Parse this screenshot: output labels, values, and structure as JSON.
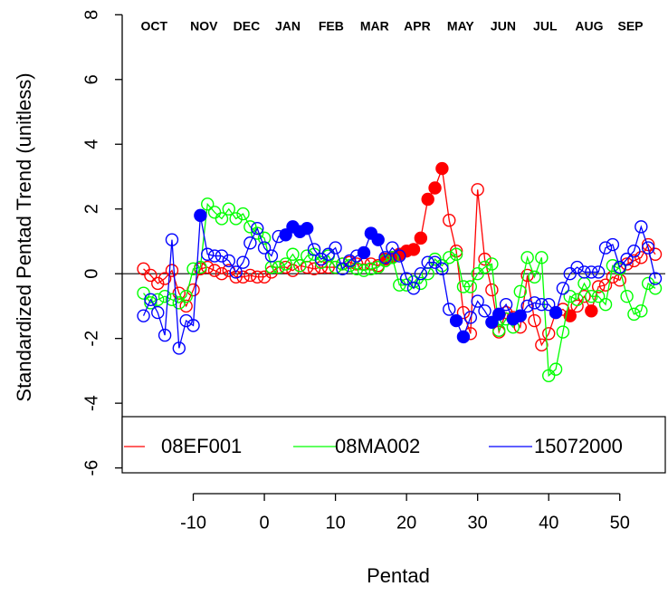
{
  "chart_data": {
    "type": "line",
    "ylabel": "Standardized Pentad Trend (unitless)",
    "xlabel": "Pentad",
    "xlim": [
      -20,
      56.4
    ],
    "ylim": [
      -6.85,
      8.4
    ],
    "xticks": [
      -10,
      0,
      10,
      20,
      30,
      40,
      50
    ],
    "yticks": [
      -6,
      -4,
      -2,
      0,
      2,
      4,
      6,
      8
    ],
    "hline": 0,
    "month_labels": {
      "labels": [
        "OCT",
        "NOV",
        "DEC",
        "JAN",
        "FEB",
        "MAR",
        "APR",
        "MAY",
        "JUN",
        "JUL",
        "AUG",
        "SEP"
      ],
      "x": [
        -15.5,
        -8.5,
        -2.5,
        3.3,
        9.4,
        15.5,
        21.5,
        27.6,
        33.6,
        39.5,
        45.7,
        51.5
      ]
    },
    "x": [
      -17,
      -16,
      -15,
      -14,
      -13,
      -12,
      -11,
      -10,
      -9,
      -8,
      -7,
      -6,
      -5,
      -4,
      -3,
      -2,
      -1,
      0,
      1,
      2,
      3,
      4,
      5,
      6,
      7,
      8,
      9,
      10,
      11,
      12,
      13,
      14,
      15,
      16,
      17,
      18,
      19,
      20,
      21,
      22,
      23,
      24,
      25,
      26,
      27,
      28,
      29,
      30,
      31,
      32,
      33,
      34,
      35,
      36,
      37,
      38,
      39,
      40,
      41,
      42,
      43,
      44,
      45,
      46,
      47,
      48,
      49,
      50,
      51,
      52,
      53,
      54,
      55
    ],
    "series": [
      {
        "name": "08EF001",
        "color": "#ff0000",
        "values": [
          0.15,
          -0.05,
          -0.3,
          -0.15,
          0.1,
          -0.6,
          -1.0,
          -0.5,
          0.15,
          0.2,
          0.1,
          0.0,
          0.1,
          -0.1,
          -0.1,
          -0.05,
          -0.1,
          -0.1,
          0.05,
          0.2,
          0.2,
          0.1,
          0.25,
          0.2,
          0.15,
          0.2,
          0.2,
          0.2,
          0.3,
          0.35,
          0.3,
          0.3,
          0.3,
          0.25,
          0.45,
          0.5,
          0.6,
          0.7,
          0.75,
          1.1,
          2.3,
          2.65,
          3.25,
          1.65,
          0.7,
          -1.2,
          -1.85,
          2.6,
          0.45,
          -0.5,
          -1.8,
          -1.2,
          -1.35,
          -1.65,
          -0.05,
          -1.45,
          -2.2,
          -1.85,
          -1.2,
          -1.1,
          -1.3,
          -1.0,
          -0.7,
          -1.15,
          -0.4,
          -0.35,
          -0.1,
          -0.2,
          0.3,
          0.4,
          0.5,
          0.9,
          0.6
        ],
        "filled": [
          34,
          35,
          36,
          37,
          38,
          39,
          40,
          41,
          42,
          60,
          63
        ]
      },
      {
        "name": "08MA002",
        "color": "#00ff00",
        "values": [
          -0.6,
          -0.9,
          -0.8,
          -0.7,
          -0.8,
          -0.9,
          -0.7,
          0.15,
          0.2,
          2.15,
          1.9,
          1.7,
          2.0,
          1.7,
          1.85,
          1.45,
          1.25,
          1.1,
          0.2,
          0.2,
          0.3,
          0.6,
          0.25,
          0.55,
          0.6,
          0.35,
          0.55,
          0.2,
          0.3,
          0.25,
          0.15,
          0.1,
          0.15,
          0.2,
          0.4,
          0.5,
          -0.35,
          -0.35,
          -0.25,
          -0.3,
          0.0,
          0.45,
          0.25,
          0.5,
          0.6,
          -0.4,
          -0.4,
          0.0,
          0.2,
          0.3,
          -1.75,
          -1.4,
          -1.65,
          -0.55,
          0.5,
          -0.1,
          0.5,
          -3.15,
          -2.95,
          -1.8,
          -0.7,
          -0.8,
          -0.3,
          -0.7,
          -0.7,
          -0.95,
          0.25,
          0.15,
          -0.7,
          -1.25,
          -1.15,
          -0.3,
          -0.45
        ],
        "filled": []
      },
      {
        "name": "15072000",
        "color": "#0000ff",
        "values": [
          -1.3,
          -0.8,
          -1.2,
          -1.9,
          1.05,
          -2.3,
          -1.45,
          -1.6,
          1.8,
          0.6,
          0.55,
          0.55,
          0.4,
          0.05,
          0.35,
          0.95,
          1.4,
          0.8,
          0.55,
          1.15,
          1.2,
          1.45,
          1.3,
          1.4,
          0.75,
          0.45,
          0.6,
          0.8,
          0.15,
          0.4,
          0.55,
          0.65,
          1.25,
          1.05,
          0.5,
          0.8,
          0.55,
          -0.15,
          -0.45,
          0.0,
          0.35,
          0.35,
          0.15,
          -1.1,
          -1.45,
          -1.95,
          -1.35,
          -0.85,
          -1.15,
          -1.5,
          -1.25,
          -0.95,
          -1.4,
          -1.3,
          -1.0,
          -0.9,
          -0.95,
          -0.95,
          -1.2,
          -0.45,
          0.0,
          0.2,
          0.05,
          0.05,
          0.05,
          0.8,
          0.9,
          0.2,
          0.45,
          0.7,
          1.45,
          0.8,
          -0.15
        ],
        "filled": [
          8,
          20,
          21,
          22,
          23,
          31,
          32,
          33,
          44,
          45,
          49,
          50,
          52,
          53,
          58
        ]
      }
    ]
  }
}
